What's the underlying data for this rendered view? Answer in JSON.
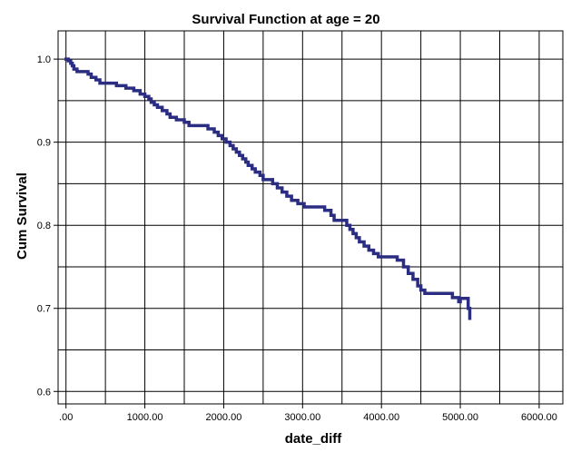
{
  "chart_data": {
    "type": "line",
    "title": "Survival Function at age = 20",
    "xlabel": "date_diff",
    "ylabel": "Cum Survival",
    "xlim": [
      -100,
      6300
    ],
    "ylim": [
      0.585,
      1.034
    ],
    "x_ticks": [
      0,
      1000,
      2000,
      3000,
      4000,
      5000,
      6000
    ],
    "x_tick_labels": [
      ".00",
      "1000.00",
      "2000.00",
      "3000.00",
      "4000.00",
      "5000.00",
      "6000.00"
    ],
    "y_ticks": [
      0.6,
      0.7,
      0.8,
      0.9,
      1.0
    ],
    "y_tick_labels": [
      "0.6",
      "0.7",
      "0.8",
      "0.9",
      "1.0"
    ],
    "x_grid": [
      0,
      500,
      1000,
      1500,
      2000,
      2500,
      3000,
      3500,
      4000,
      4500,
      5000,
      5500,
      6000
    ],
    "y_grid": [
      0.6,
      0.65,
      0.7,
      0.75,
      0.8,
      0.85,
      0.9,
      0.95,
      1.0
    ],
    "grid": true,
    "colors": {
      "series": "#2b2d82",
      "grid": "#000000",
      "frame": "#000000"
    },
    "series": [
      {
        "step": true,
        "x": [
          0,
          30,
          60,
          80,
          100,
          140,
          280,
          320,
          380,
          430,
          640,
          760,
          860,
          940,
          1000,
          1050,
          1080,
          1120,
          1160,
          1220,
          1280,
          1320,
          1400,
          1500,
          1560,
          1800,
          1880,
          1930,
          1980,
          2030,
          2080,
          2120,
          2160,
          2200,
          2240,
          2280,
          2310,
          2360,
          2400,
          2460,
          2500,
          2620,
          2680,
          2740,
          2800,
          2860,
          2940,
          3020,
          3280,
          3360,
          3400,
          3560,
          3600,
          3640,
          3680,
          3720,
          3780,
          3840,
          3900,
          3960,
          4200,
          4280,
          4340,
          4400,
          4460,
          4500,
          4550,
          4900,
          4980,
          5000,
          5100,
          5120
        ],
        "y": [
          1.0,
          0.998,
          0.995,
          0.992,
          0.988,
          0.985,
          0.982,
          0.978,
          0.975,
          0.971,
          0.968,
          0.965,
          0.962,
          0.958,
          0.955,
          0.952,
          0.948,
          0.945,
          0.942,
          0.938,
          0.934,
          0.93,
          0.927,
          0.924,
          0.92,
          0.916,
          0.912,
          0.908,
          0.904,
          0.9,
          0.896,
          0.892,
          0.888,
          0.884,
          0.88,
          0.876,
          0.872,
          0.868,
          0.864,
          0.86,
          0.855,
          0.85,
          0.845,
          0.84,
          0.835,
          0.83,
          0.826,
          0.822,
          0.818,
          0.812,
          0.806,
          0.8,
          0.795,
          0.79,
          0.785,
          0.78,
          0.775,
          0.77,
          0.766,
          0.762,
          0.758,
          0.75,
          0.742,
          0.735,
          0.727,
          0.722,
          0.718,
          0.713,
          0.708,
          0.712,
          0.7,
          0.688
        ]
      }
    ]
  }
}
